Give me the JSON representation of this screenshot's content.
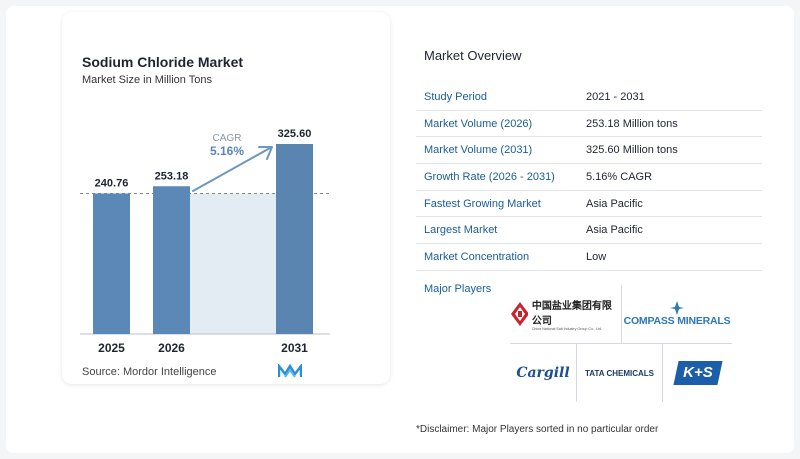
{
  "chart": {
    "title": "Sodium Chloride Market",
    "subtitle": "Market Size in Million Tons",
    "source": "Source:  Mordor Intelligence",
    "cagr_label": "CAGR",
    "cagr_value": "5.16%"
  },
  "chart_data": {
    "type": "bar",
    "categories": [
      "2025",
      "2026",
      "2031"
    ],
    "values": [
      240.76,
      253.18,
      325.6
    ],
    "value_labels": [
      "240.76",
      "253.18",
      "325.60"
    ],
    "title": "Sodium Chloride Market",
    "subtitle": "Market Size in Million Tons",
    "xlabel": "",
    "ylabel": "",
    "annotation": "CAGR 5.16%",
    "grid": false,
    "colors": {
      "bar": "#5b88b6",
      "bar_dark": "#5a85b0",
      "band": "#e3ebf3",
      "arrow": "#6b97c0",
      "cagr": "#5b86b5"
    }
  },
  "overview": {
    "title": "Market Overview",
    "rows": [
      {
        "label": "Study Period",
        "value": "2021 - 2031"
      },
      {
        "label": "Market Volume (2026)",
        "value": "253.18 Million tons"
      },
      {
        "label": "Market Volume (2031)",
        "value": "325.60 Million tons"
      },
      {
        "label": "Growth Rate (2026 - 2031)",
        "value": "5.16% CAGR"
      },
      {
        "label": "Fastest Growing Market",
        "value": "Asia Pacific"
      },
      {
        "label": "Largest Market",
        "value": "Asia Pacific"
      },
      {
        "label": "Market Concentration",
        "value": "Low"
      }
    ],
    "players_title": "Major Players",
    "players": [
      {
        "name": "中国盐业集团有限公司",
        "sub": "China National Salt Industry Group Co., Ltd."
      },
      {
        "name": "COMPASS MINERALS"
      },
      {
        "name": "Cargill"
      },
      {
        "name": "TATA CHEMICALS"
      },
      {
        "name": "K+S"
      }
    ],
    "disclaimer": "*Disclaimer: Major Players sorted in no particular order"
  }
}
